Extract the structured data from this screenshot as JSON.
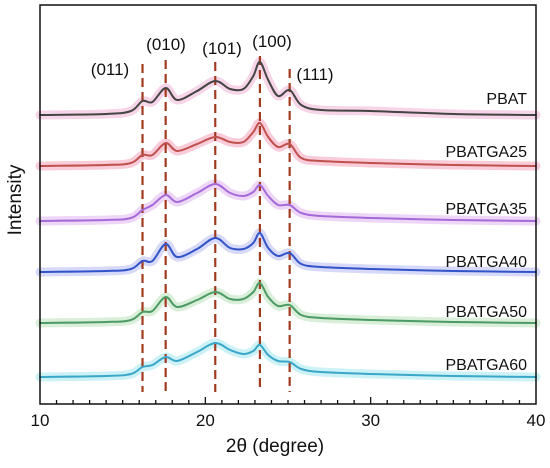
{
  "chart_data": {
    "type": "line",
    "title": "",
    "xlabel": "2θ  (degree)",
    "ylabel": "Intensity",
    "xlim": [
      10,
      40
    ],
    "x_ticks": [
      10,
      20,
      30,
      40
    ],
    "y_ticks": [],
    "grid": false,
    "legend": "inline labels at right of each curve",
    "reference_lines": [
      {
        "label": "(011)",
        "x": 16.2,
        "color": "#a23b1e"
      },
      {
        "label": "(010)",
        "x": 17.6,
        "color": "#a23b1e"
      },
      {
        "label": "(101)",
        "x": 20.6,
        "color": "#a23b1e"
      },
      {
        "label": "(100)",
        "x": 23.3,
        "color": "#a23b1e"
      },
      {
        "label": "(111)",
        "x": 25.1,
        "color": "#a23b1e"
      }
    ],
    "x": [
      10,
      14,
      15.5,
      16.2,
      16.8,
      17.6,
      18.3,
      19.5,
      20.6,
      21.5,
      22.3,
      22.9,
      23.3,
      23.8,
      24.4,
      25.1,
      25.8,
      27,
      30,
      35,
      40
    ],
    "series": [
      {
        "name": "PBAT",
        "color": "#444444",
        "halo": "#f3c3de",
        "values": [
          0.05,
          0.1,
          0.25,
          0.75,
          0.7,
          1.4,
          0.8,
          1.25,
          1.75,
          1.35,
          1.35,
          2.0,
          2.7,
          1.8,
          1.0,
          1.3,
          0.55,
          0.3,
          0.25,
          0.1,
          0.05
        ]
      },
      {
        "name": "PBATGA25",
        "color": "#c0504d",
        "halo": "#f5b7c9",
        "values": [
          0.05,
          0.1,
          0.2,
          0.6,
          0.6,
          1.2,
          0.8,
          1.15,
          1.5,
          1.25,
          1.25,
          1.75,
          2.2,
          1.5,
          1.0,
          1.15,
          0.45,
          0.3,
          0.2,
          0.1,
          0.05
        ]
      },
      {
        "name": "PBATGA35",
        "color": "#a56ad9",
        "halo": "#e7c4f2",
        "values": [
          0.05,
          0.1,
          0.2,
          0.6,
          0.85,
          1.35,
          1.0,
          1.45,
          1.9,
          1.45,
          1.3,
          1.5,
          1.85,
          1.3,
          0.85,
          0.85,
          0.45,
          0.3,
          0.2,
          0.1,
          0.05
        ]
      },
      {
        "name": "PBATGA40",
        "color": "#3354c9",
        "halo": "#c6c9f5",
        "values": [
          0.05,
          0.1,
          0.2,
          0.6,
          0.6,
          1.45,
          0.8,
          1.2,
          1.75,
          1.25,
          1.2,
          1.5,
          2.0,
          1.25,
          0.85,
          1.0,
          0.45,
          0.3,
          0.2,
          0.1,
          0.05
        ]
      },
      {
        "name": "PBATGA50",
        "color": "#4c9a64",
        "halo": "#c9e8c9",
        "values": [
          0.05,
          0.1,
          0.2,
          0.6,
          0.65,
          1.35,
          0.85,
          1.2,
          1.6,
          1.25,
          1.25,
          1.6,
          2.05,
          1.35,
          0.9,
          0.95,
          0.45,
          0.3,
          0.2,
          0.1,
          0.05
        ]
      },
      {
        "name": "PBATGA60",
        "color": "#3aa6c8",
        "halo": "#b6ecf4",
        "values": [
          0.05,
          0.1,
          0.2,
          0.55,
          0.65,
          1.05,
          0.85,
          1.3,
          1.75,
          1.4,
          1.2,
          1.35,
          1.65,
          1.15,
          0.85,
          0.8,
          0.45,
          0.3,
          0.2,
          0.1,
          0.05
        ]
      }
    ]
  }
}
